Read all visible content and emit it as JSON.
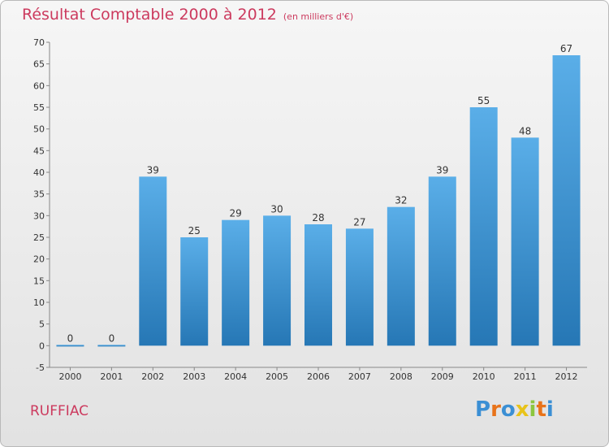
{
  "chart_data": {
    "type": "bar",
    "title": "Résultat Comptable 2000 à 2012",
    "unit": "(en milliers d'€)",
    "categories": [
      "2000",
      "2001",
      "2002",
      "2003",
      "2004",
      "2005",
      "2006",
      "2007",
      "2008",
      "2009",
      "2010",
      "2011",
      "2012"
    ],
    "values": [
      0,
      0,
      39,
      25,
      29,
      30,
      28,
      27,
      32,
      39,
      55,
      48,
      67
    ],
    "ylim": [
      -5,
      70
    ],
    "yticks": [
      -5,
      0,
      5,
      10,
      15,
      20,
      25,
      30,
      35,
      40,
      45,
      50,
      55,
      60,
      65,
      70
    ],
    "grid": false,
    "xlabel": "",
    "ylabel": "",
    "bar_color_top": "#5aaee8",
    "bar_color_bottom": "#2677b5"
  },
  "location": "RUFFIAC",
  "brand": {
    "letters": [
      "P",
      "r",
      "o",
      "x",
      "i",
      "t",
      "i"
    ],
    "colors": [
      "#3b8fd4",
      "#e8731a",
      "#3b8fd4",
      "#e8c31a",
      "#8cc63f",
      "#e8731a",
      "#3b8fd4"
    ]
  },
  "colors": {
    "accent": "#cc3a5e"
  }
}
